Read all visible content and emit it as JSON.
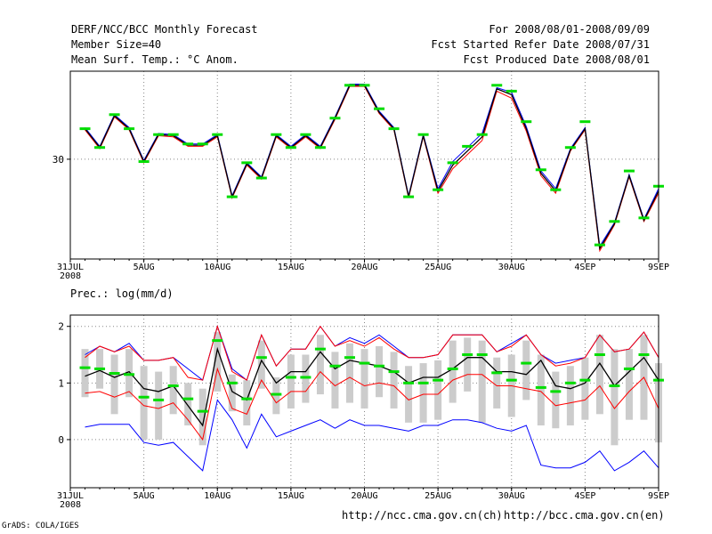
{
  "header": {
    "left": [
      "DERF/NCC/BCC Monthly Forecast",
      "Member Size=40",
      "Mean Surf. Temp.: °C Anom."
    ],
    "right": [
      "For 2008/08/01-2008/09/09",
      "Fcst Started Refer Date 2008/07/31",
      "Fcst Produced Date 2008/08/01"
    ]
  },
  "colors": {
    "frame": "#000000",
    "grid": "#888888",
    "mean": "#000000",
    "upper": "#0000ff",
    "lower": "#ff0000",
    "obs": "#00dd00",
    "bar": "#cccccc"
  },
  "x_ticks": [
    {
      "d": 0,
      "label": "31JUL",
      "label2": "2008"
    },
    {
      "d": 5,
      "label": "5AUG"
    },
    {
      "d": 10,
      "label": "10AUG"
    },
    {
      "d": 15,
      "label": "15AUG"
    },
    {
      "d": 20,
      "label": "20AUG"
    },
    {
      "d": 25,
      "label": "25AUG"
    },
    {
      "d": 30,
      "label": "30AUG"
    },
    {
      "d": 35,
      "label": "4SEP"
    },
    {
      "d": 40,
      "label": "9SEP"
    }
  ],
  "chart_data": [
    {
      "type": "line",
      "title": "Mean Surf. Temp.: °C Anom.",
      "x": [
        1,
        2,
        3,
        4,
        5,
        6,
        7,
        8,
        9,
        10,
        11,
        12,
        13,
        14,
        15,
        16,
        17,
        18,
        19,
        20,
        21,
        22,
        23,
        24,
        25,
        26,
        27,
        28,
        29,
        30,
        31,
        32,
        33,
        34,
        35,
        36,
        37,
        38,
        39,
        40
      ],
      "xlim": [
        0,
        40
      ],
      "ylim": [
        29.15,
        30.75
      ],
      "yticks": [
        30
      ],
      "series": [
        {
          "name": "ensemble-mean",
          "values": [
            30.26,
            30.1,
            30.37,
            30.26,
            29.98,
            30.21,
            30.2,
            30.12,
            30.12,
            30.2,
            29.68,
            29.96,
            29.84,
            30.2,
            30.1,
            30.2,
            30.1,
            30.35,
            30.63,
            30.63,
            30.4,
            30.26,
            29.68,
            30.2,
            29.73,
            29.95,
            30.07,
            30.19,
            30.6,
            30.55,
            30.26,
            29.88,
            29.73,
            30.08,
            30.26,
            29.24,
            29.45,
            29.86,
            29.48,
            29.73
          ]
        },
        {
          "name": "ensemble-upper",
          "values": [
            30.27,
            30.11,
            30.38,
            30.27,
            29.99,
            30.22,
            30.21,
            30.13,
            30.13,
            30.21,
            29.69,
            29.97,
            29.85,
            30.21,
            30.11,
            30.21,
            30.11,
            30.36,
            30.64,
            30.64,
            30.41,
            30.27,
            29.69,
            30.21,
            29.75,
            29.98,
            30.1,
            30.22,
            30.61,
            30.57,
            30.28,
            29.9,
            29.75,
            30.09,
            30.27,
            29.26,
            29.46,
            29.87,
            29.49,
            29.75
          ]
        },
        {
          "name": "ensemble-lower",
          "values": [
            30.25,
            30.09,
            30.36,
            30.25,
            29.97,
            30.2,
            30.19,
            30.11,
            30.11,
            30.19,
            29.67,
            29.95,
            29.83,
            30.19,
            30.09,
            30.19,
            30.09,
            30.34,
            30.62,
            30.62,
            30.39,
            30.25,
            29.67,
            30.19,
            29.71,
            29.92,
            30.04,
            30.16,
            30.58,
            30.52,
            30.24,
            29.86,
            29.71,
            30.07,
            30.25,
            29.22,
            29.44,
            29.85,
            29.47,
            29.71
          ]
        },
        {
          "name": "observed",
          "values": [
            30.26,
            30.1,
            30.38,
            30.26,
            29.98,
            30.21,
            30.21,
            30.13,
            30.13,
            30.21,
            29.68,
            29.97,
            29.84,
            30.21,
            30.1,
            30.21,
            30.1,
            30.35,
            30.63,
            30.63,
            30.43,
            30.26,
            29.68,
            30.21,
            29.74,
            29.97,
            30.11,
            30.21,
            30.63,
            30.58,
            30.32,
            29.91,
            29.74,
            30.1,
            30.32,
            29.27,
            29.47,
            29.9,
            29.5,
            29.77
          ]
        }
      ]
    },
    {
      "type": "line",
      "title": "Prec.: log(mm/d)",
      "x": [
        1,
        2,
        3,
        4,
        5,
        6,
        7,
        8,
        9,
        10,
        11,
        12,
        13,
        14,
        15,
        16,
        17,
        18,
        19,
        20,
        21,
        22,
        23,
        24,
        25,
        26,
        27,
        28,
        29,
        30,
        31,
        32,
        33,
        34,
        35,
        36,
        37,
        38,
        39,
        40
      ],
      "xlim": [
        0,
        40
      ],
      "ylim": [
        -0.85,
        2.2
      ],
      "yticks": [
        0,
        1,
        2
      ],
      "series": [
        {
          "name": "mean",
          "values": [
            1.12,
            1.22,
            1.1,
            1.2,
            0.9,
            0.85,
            0.95,
            0.6,
            0.25,
            1.6,
            0.85,
            0.7,
            1.4,
            1.0,
            1.2,
            1.2,
            1.55,
            1.25,
            1.4,
            1.35,
            1.3,
            1.2,
            1.0,
            1.1,
            1.1,
            1.25,
            1.45,
            1.45,
            1.2,
            1.2,
            1.15,
            1.4,
            0.95,
            0.9,
            1.0,
            1.35,
            0.95,
            1.2,
            1.45,
            1.05
          ]
        },
        {
          "name": "upper",
          "values": [
            1.45,
            1.65,
            1.55,
            1.65,
            1.4,
            1.4,
            1.45,
            1.1,
            1.05,
            2.0,
            1.2,
            1.05,
            1.85,
            1.3,
            1.6,
            1.6,
            2.0,
            1.65,
            1.75,
            1.65,
            1.8,
            1.6,
            1.45,
            1.45,
            1.5,
            1.85,
            1.85,
            1.85,
            1.55,
            1.65,
            1.85,
            1.5,
            1.3,
            1.35,
            1.45,
            1.85,
            1.55,
            1.6,
            1.9,
            1.45
          ]
        },
        {
          "name": "lower",
          "values": [
            0.82,
            0.85,
            0.75,
            0.85,
            0.6,
            0.55,
            0.65,
            0.35,
            0.0,
            1.25,
            0.55,
            0.45,
            1.05,
            0.65,
            0.85,
            0.85,
            1.2,
            0.95,
            1.1,
            0.95,
            1.0,
            0.95,
            0.7,
            0.8,
            0.8,
            1.05,
            1.15,
            1.15,
            0.95,
            0.95,
            0.9,
            0.85,
            0.6,
            0.65,
            0.7,
            0.95,
            0.55,
            0.85,
            1.1,
            0.55
          ]
        },
        {
          "name": "outer-upper",
          "values": [
            1.5,
            1.65,
            1.55,
            1.7,
            1.4,
            1.4,
            1.45,
            1.25,
            1.05,
            2.0,
            1.25,
            1.05,
            1.85,
            1.3,
            1.6,
            1.6,
            2.0,
            1.65,
            1.8,
            1.7,
            1.85,
            1.65,
            1.45,
            1.45,
            1.5,
            1.85,
            1.85,
            1.85,
            1.55,
            1.7,
            1.85,
            1.5,
            1.35,
            1.4,
            1.45,
            1.85,
            1.55,
            1.6,
            1.9,
            1.45
          ]
        },
        {
          "name": "outer-lower",
          "values": [
            0.22,
            0.27,
            0.27,
            0.27,
            -0.05,
            -0.1,
            -0.05,
            -0.3,
            -0.55,
            0.7,
            0.35,
            -0.15,
            0.45,
            0.05,
            0.15,
            0.25,
            0.35,
            0.2,
            0.35,
            0.25,
            0.25,
            0.2,
            0.15,
            0.25,
            0.25,
            0.35,
            0.35,
            0.3,
            0.2,
            0.15,
            0.25,
            -0.45,
            -0.5,
            -0.5,
            -0.4,
            -0.2,
            -0.55,
            -0.4,
            -0.2,
            -0.5
          ]
        },
        {
          "name": "observed",
          "values": [
            1.27,
            1.25,
            1.17,
            1.15,
            0.75,
            0.7,
            0.95,
            0.72,
            0.5,
            1.75,
            1.0,
            0.72,
            1.45,
            0.8,
            1.1,
            1.1,
            1.6,
            1.3,
            1.45,
            1.35,
            1.3,
            1.2,
            1.0,
            1.0,
            1.05,
            1.25,
            1.5,
            1.5,
            1.18,
            1.05,
            1.35,
            0.92,
            0.85,
            1.0,
            1.05,
            1.5,
            0.95,
            1.25,
            1.5,
            1.05
          ]
        },
        {
          "name": "spread-max",
          "values": [
            1.6,
            1.6,
            1.5,
            1.6,
            1.3,
            1.2,
            1.3,
            1.0,
            0.9,
            1.9,
            1.15,
            1.05,
            1.75,
            1.1,
            1.5,
            1.5,
            1.85,
            1.55,
            1.7,
            1.6,
            1.65,
            1.55,
            1.3,
            1.35,
            1.4,
            1.75,
            1.8,
            1.75,
            1.45,
            1.5,
            1.75,
            1.5,
            1.2,
            1.3,
            1.45,
            1.85,
            1.6,
            1.6,
            1.85,
            1.35
          ]
        },
        {
          "name": "spread-min",
          "values": [
            0.75,
            0.9,
            0.45,
            0.75,
            0.0,
            0.0,
            0.45,
            0.25,
            -0.1,
            0.85,
            0.5,
            0.25,
            0.9,
            0.45,
            0.55,
            0.65,
            0.8,
            0.55,
            0.65,
            0.55,
            0.75,
            0.55,
            0.3,
            0.3,
            0.35,
            0.65,
            0.85,
            0.3,
            0.55,
            0.4,
            0.7,
            0.25,
            0.2,
            0.25,
            0.35,
            0.45,
            -0.1,
            0.35,
            0.35,
            -0.05
          ]
        }
      ]
    }
  ],
  "panel2_title": "Prec.: log(mm/d)",
  "footer": {
    "left": "GrADS: COLA/IGES",
    "url1": "http://ncc.cma.gov.cn(ch)",
    "url2": "http://bcc.cma.gov.cn(en)"
  }
}
